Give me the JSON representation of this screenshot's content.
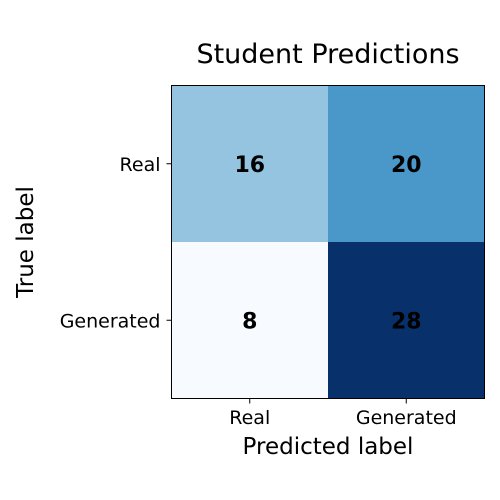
{
  "chart_data": {
    "type": "heatmap",
    "title": "Student Predictions",
    "xlabel": "Predicted label",
    "ylabel": "True label",
    "x_categories": [
      "Real",
      "Generated"
    ],
    "y_categories": [
      "Real",
      "Generated"
    ],
    "values": [
      [
        16,
        20
      ],
      [
        8,
        28
      ]
    ],
    "colormap": "Blues",
    "color_range": [
      8,
      28
    ],
    "cell_colors": [
      [
        "#94c4df",
        "#4a98c9"
      ],
      [
        "#f7fbff",
        "#08306b"
      ]
    ],
    "annotation_color": "#000000"
  }
}
